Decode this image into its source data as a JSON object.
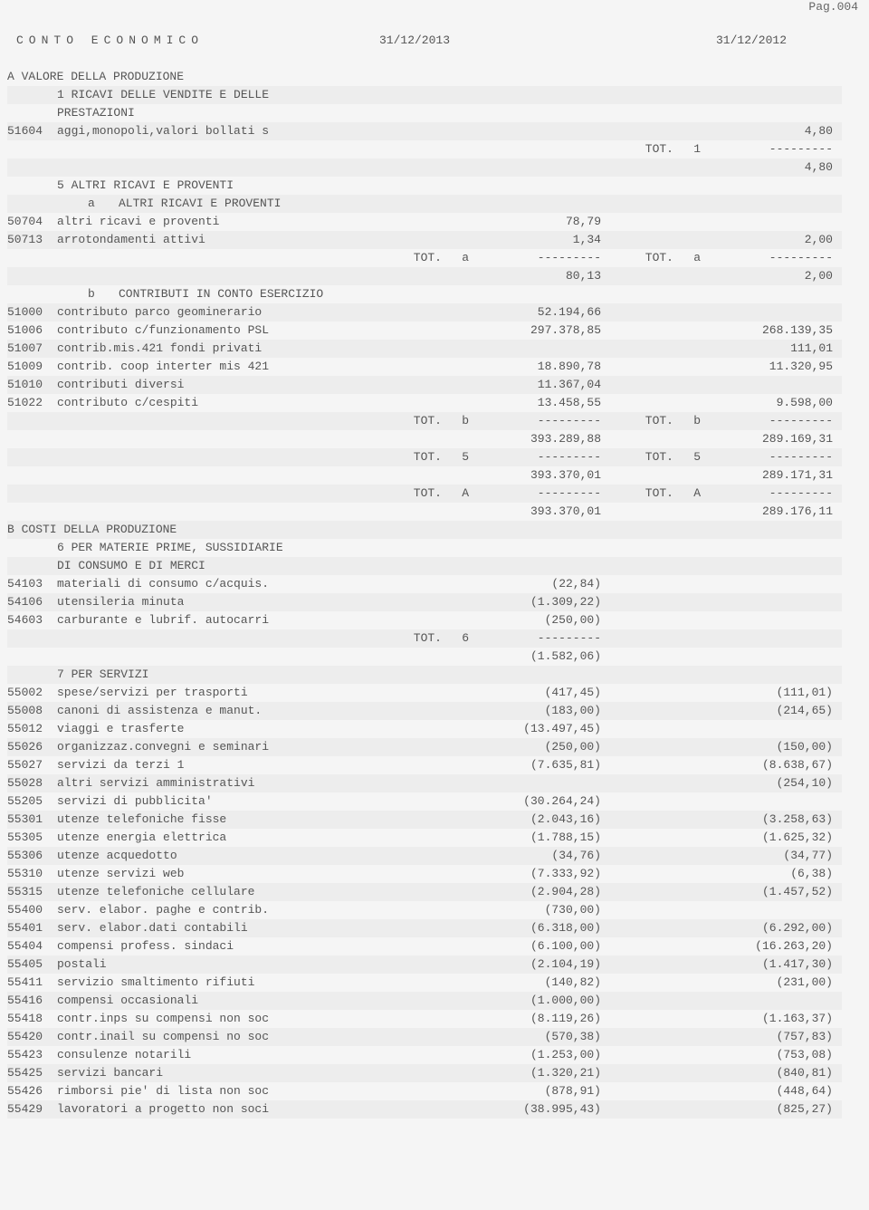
{
  "page_number": "Pag.004",
  "header": {
    "title": "CONTO ECONOMICO",
    "col2013": "31/12/2013",
    "col2012": "31/12/2012"
  },
  "separator": "---------",
  "tot_label": "TOT.",
  "sections": {
    "A": {
      "title": "A VALORE DELLA PRODUZIONE"
    },
    "A1": {
      "title": "1 RICAVI DELLE VENDITE E DELLE",
      "title2": "PRESTAZIONI"
    },
    "A5": {
      "title": "5 ALTRI RICAVI E PROVENTI"
    },
    "A5a": {
      "code": "a",
      "title": "ALTRI RICAVI E PROVENTI"
    },
    "A5b": {
      "code": "b",
      "title": "CONTRIBUTI IN CONTO ESERCIZIO"
    },
    "B": {
      "title": "B COSTI DELLA PRODUZIONE"
    },
    "B6": {
      "title": "6 PER MATERIE PRIME, SUSSIDIARIE",
      "title2": "DI CONSUMO E DI MERCI"
    },
    "B7": {
      "title": "7 PER SERVIZI"
    }
  },
  "lines": {
    "l51604": {
      "code": "51604",
      "desc": "aggi,monopoli,valori bollati s",
      "v2013": "",
      "v2012": "4,80"
    },
    "tot1": {
      "code": "1",
      "sum2013": "",
      "sum2012": "4,80"
    },
    "l50704": {
      "code": "50704",
      "desc": "altri ricavi e proventi",
      "v2013": "78,79",
      "v2012": ""
    },
    "l50713": {
      "code": "50713",
      "desc": "arrotondamenti attivi",
      "v2013": "1,34",
      "v2012": "2,00"
    },
    "tota": {
      "code": "a",
      "sum2013": "80,13",
      "sum2012": "2,00"
    },
    "l51000": {
      "code": "51000",
      "desc": "contributo parco geominerario",
      "v2013": "52.194,66",
      "v2012": ""
    },
    "l51006": {
      "code": "51006",
      "desc": "contributo c/funzionamento PSL",
      "v2013": "297.378,85",
      "v2012": "268.139,35"
    },
    "l51007": {
      "code": "51007",
      "desc": "contrib.mis.421 fondi privati",
      "v2013": "",
      "v2012": "111,01"
    },
    "l51009": {
      "code": "51009",
      "desc": "contrib. coop interter mis 421",
      "v2013": "18.890,78",
      "v2012": "11.320,95"
    },
    "l51010": {
      "code": "51010",
      "desc": "contributi diversi",
      "v2013": "11.367,04",
      "v2012": ""
    },
    "l51022": {
      "code": "51022",
      "desc": "contributo c/cespiti",
      "v2013": "13.458,55",
      "v2012": "9.598,00"
    },
    "totb": {
      "code": "b",
      "sum2013": "393.289,88",
      "sum2012": "289.169,31"
    },
    "tot5": {
      "code": "5",
      "sum2013": "393.370,01",
      "sum2012": "289.171,31"
    },
    "totA": {
      "code": "A",
      "sum2013": "393.370,01",
      "sum2012": "289.176,11"
    },
    "l54103": {
      "code": "54103",
      "desc": "materiali di consumo c/acquis.",
      "v2013": "(22,84)",
      "v2012": ""
    },
    "l54106": {
      "code": "54106",
      "desc": "utensileria minuta",
      "v2013": "(1.309,22)",
      "v2012": ""
    },
    "l54603": {
      "code": "54603",
      "desc": "carburante e lubrif. autocarri",
      "v2013": "(250,00)",
      "v2012": ""
    },
    "tot6": {
      "code": "6",
      "sum2013": "(1.582,06)",
      "sum2012": ""
    },
    "l55002": {
      "code": "55002",
      "desc": "spese/servizi per trasporti",
      "v2013": "(417,45)",
      "v2012": "(111,01)"
    },
    "l55008": {
      "code": "55008",
      "desc": "canoni di assistenza e manut.",
      "v2013": "(183,00)",
      "v2012": "(214,65)"
    },
    "l55012": {
      "code": "55012",
      "desc": "viaggi e trasferte",
      "v2013": "(13.497,45)",
      "v2012": ""
    },
    "l55026": {
      "code": "55026",
      "desc": "organizzaz.convegni e seminari",
      "v2013": "(250,00)",
      "v2012": "(150,00)"
    },
    "l55027": {
      "code": "55027",
      "desc": "servizi da terzi 1",
      "v2013": "(7.635,81)",
      "v2012": "(8.638,67)"
    },
    "l55028": {
      "code": "55028",
      "desc": "altri servizi amministrativi",
      "v2013": "",
      "v2012": "(254,10)"
    },
    "l55205": {
      "code": "55205",
      "desc": "servizi di pubblicita'",
      "v2013": "(30.264,24)",
      "v2012": ""
    },
    "l55301": {
      "code": "55301",
      "desc": "utenze telefoniche fisse",
      "v2013": "(2.043,16)",
      "v2012": "(3.258,63)"
    },
    "l55305": {
      "code": "55305",
      "desc": "utenze energia elettrica",
      "v2013": "(1.788,15)",
      "v2012": "(1.625,32)"
    },
    "l55306": {
      "code": "55306",
      "desc": "utenze acquedotto",
      "v2013": "(34,76)",
      "v2012": "(34,77)"
    },
    "l55310": {
      "code": "55310",
      "desc": "utenze servizi web",
      "v2013": "(7.333,92)",
      "v2012": "(6,38)"
    },
    "l55315": {
      "code": "55315",
      "desc": "utenze telefoniche cellulare",
      "v2013": "(2.904,28)",
      "v2012": "(1.457,52)"
    },
    "l55400": {
      "code": "55400",
      "desc": "serv. elabor. paghe e contrib.",
      "v2013": "(730,00)",
      "v2012": ""
    },
    "l55401": {
      "code": "55401",
      "desc": "serv. elabor.dati contabili",
      "v2013": "(6.318,00)",
      "v2012": "(6.292,00)"
    },
    "l55404": {
      "code": "55404",
      "desc": "compensi profess. sindaci",
      "v2013": "(6.100,00)",
      "v2012": "(16.263,20)"
    },
    "l55405": {
      "code": "55405",
      "desc": "postali",
      "v2013": "(2.104,19)",
      "v2012": "(1.417,30)"
    },
    "l55411": {
      "code": "55411",
      "desc": "servizio smaltimento rifiuti",
      "v2013": "(140,82)",
      "v2012": "(231,00)"
    },
    "l55416": {
      "code": "55416",
      "desc": "compensi occasionali",
      "v2013": "(1.000,00)",
      "v2012": ""
    },
    "l55418": {
      "code": "55418",
      "desc": "contr.inps su compensi non soc",
      "v2013": "(8.119,26)",
      "v2012": "(1.163,37)"
    },
    "l55420": {
      "code": "55420",
      "desc": "contr.inail su compensi no soc",
      "v2013": "(570,38)",
      "v2012": "(757,83)"
    },
    "l55423": {
      "code": "55423",
      "desc": "consulenze notarili",
      "v2013": "(1.253,00)",
      "v2012": "(753,08)"
    },
    "l55425": {
      "code": "55425",
      "desc": "servizi bancari",
      "v2013": "(1.320,21)",
      "v2012": "(840,81)"
    },
    "l55426": {
      "code": "55426",
      "desc": "rimborsi pie' di lista non soc",
      "v2013": "(878,91)",
      "v2012": "(448,64)"
    },
    "l55429": {
      "code": "55429",
      "desc": "lavoratori a progetto non soci",
      "v2013": "(38.995,43)",
      "v2012": "(825,27)"
    }
  }
}
